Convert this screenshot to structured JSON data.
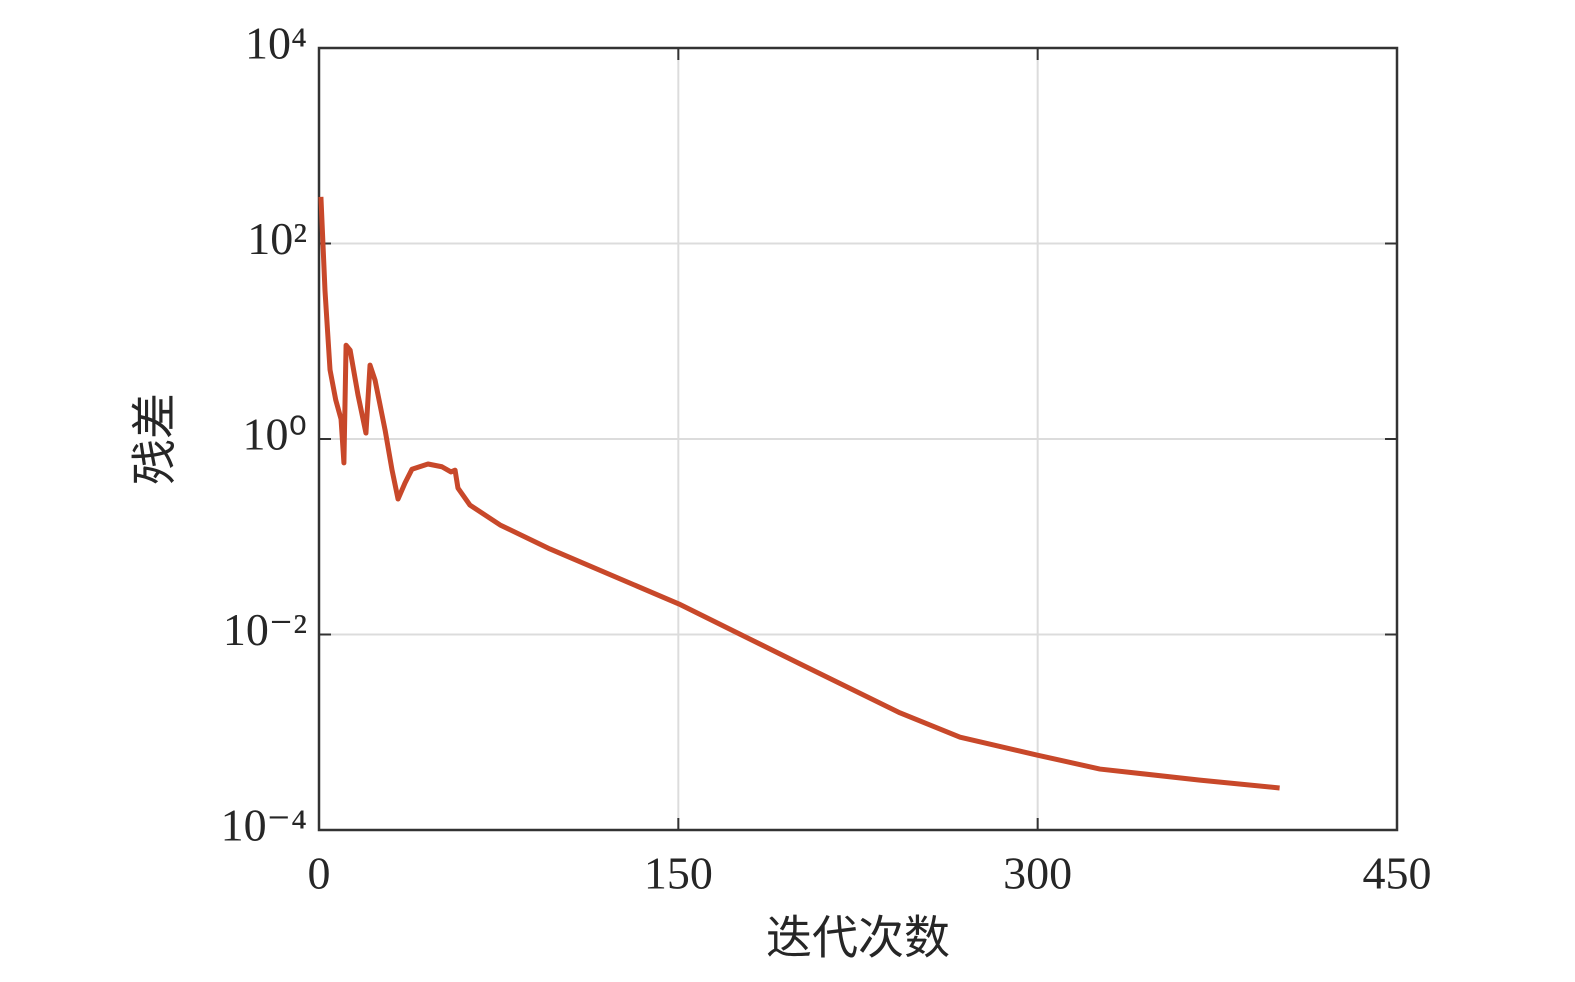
{
  "chart_data": {
    "type": "line",
    "xlabel": "迭代次数",
    "ylabel": "残差",
    "x": [
      0.8,
      2.5,
      4.6,
      7,
      9.2,
      10.4,
      11.3,
      13,
      16.3,
      19.6,
      21.3,
      23.4,
      27.6,
      30.5,
      33,
      35.9,
      38.8,
      45.5,
      51.3,
      55.1,
      56.8,
      58,
      63,
      75.6,
      96.4,
      150.3,
      200.8,
      242.5,
      267.6,
      299.7,
      326,
      367.7,
      401
    ],
    "series": [
      {
        "color": "#c8482a",
        "values": [
          300,
          33,
          5.1,
          2.5,
          1.6,
          0.57,
          9.1,
          8.1,
          2.8,
          1.15,
          5.7,
          4.0,
          1.23,
          0.48,
          0.243,
          0.355,
          0.49,
          0.555,
          0.52,
          0.46,
          0.48,
          0.315,
          0.211,
          0.132,
          0.075,
          0.0205,
          0.005,
          0.00158,
          0.00089,
          0.000585,
          0.00042,
          0.000324,
          0.000269
        ]
      }
    ],
    "xlim": [
      0,
      450
    ],
    "xticks": [
      0,
      150,
      300,
      450
    ],
    "ylim": [
      0.0001,
      10000
    ],
    "ylog": true,
    "yticks": [
      {
        "value": 0.0001,
        "label": "10⁻⁴"
      },
      {
        "value": 0.01,
        "label": "10⁻²"
      },
      {
        "value": 1,
        "label": "10⁰"
      },
      {
        "value": 100,
        "label": "10²"
      },
      {
        "value": 10000,
        "label": "10⁴"
      }
    ],
    "grid": true
  }
}
